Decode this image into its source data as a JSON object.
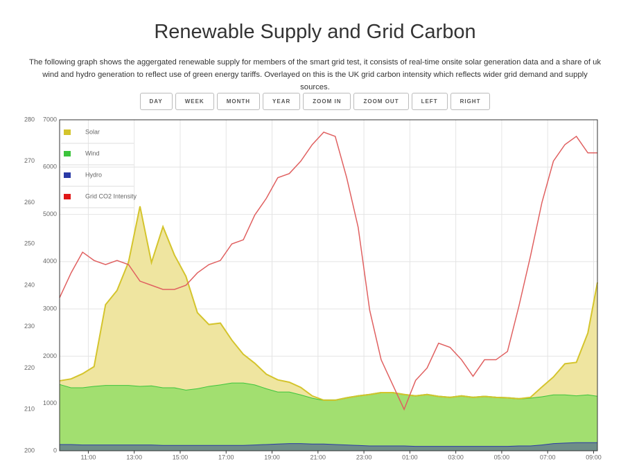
{
  "header": {
    "title": "Renewable Supply and Grid Carbon",
    "description": "The following graph shows the aggergated renewable supply for members of the smart grid test, it consists of real-time onsite solar generation data and a share of uk wind and hydro generation to reflect use of green energy tariffs. Overlayed on this is the UK grid carbon intensity which reflects wider grid demand and supply sources."
  },
  "buttons": [
    "DAY",
    "WEEK",
    "MONTH",
    "YEAR",
    "ZOOM IN",
    "ZOOM OUT",
    "LEFT",
    "RIGHT"
  ],
  "chart_data": {
    "type": "area",
    "stacked": true,
    "grid": true,
    "legend": "top-left",
    "x": [
      "09:45",
      "10:15",
      "10:45",
      "11:15",
      "11:45",
      "12:15",
      "12:45",
      "13:15",
      "13:45",
      "14:15",
      "14:45",
      "15:15",
      "15:45",
      "16:15",
      "16:45",
      "17:15",
      "17:45",
      "18:15",
      "18:45",
      "19:15",
      "19:45",
      "20:15",
      "20:45",
      "21:15",
      "21:45",
      "22:15",
      "22:45",
      "23:15",
      "23:45",
      "00:15",
      "00:45",
      "01:15",
      "01:45",
      "02:15",
      "02:45",
      "03:15",
      "03:45",
      "04:15",
      "04:45",
      "05:15",
      "05:45",
      "06:15",
      "06:45",
      "07:15",
      "07:45",
      "08:15",
      "08:45",
      "09:10"
    ],
    "xlim": [
      "09:45",
      "09:10"
    ],
    "xticks": [
      "11:00",
      "13:00",
      "15:00",
      "17:00",
      "19:00",
      "21:00",
      "23:00",
      "01:00",
      "03:00",
      "05:00",
      "07:00",
      "09:00"
    ],
    "ylim": [
      0,
      7000
    ],
    "yticks": [
      0,
      1000,
      2000,
      3000,
      4000,
      5000,
      6000,
      7000
    ],
    "y2lim": [
      200,
      280
    ],
    "y2ticks": [
      200,
      210,
      220,
      230,
      240,
      250,
      260,
      270,
      280
    ],
    "series": [
      {
        "name": "Solar",
        "color": "#d4c42c",
        "fill": "#efe5a0",
        "values": [
          70,
          180,
          290,
          410,
          1700,
          2000,
          2600,
          3800,
          2600,
          3400,
          2800,
          2400,
          1600,
          1300,
          1300,
          900,
          600,
          450,
          300,
          250,
          200,
          150,
          40,
          0,
          0,
          0,
          0,
          0,
          0,
          0,
          0,
          0,
          0,
          0,
          0,
          0,
          0,
          0,
          0,
          0,
          0,
          10,
          200,
          370,
          650,
          700,
          1300,
          2400
        ]
      },
      {
        "name": "Wind",
        "color": "#3cc43c",
        "fill": "#a2df70",
        "values": [
          1270,
          1200,
          1210,
          1240,
          1260,
          1260,
          1260,
          1240,
          1250,
          1220,
          1220,
          1170,
          1200,
          1250,
          1280,
          1320,
          1320,
          1270,
          1180,
          1100,
          1090,
          1030,
          970,
          920,
          930,
          990,
          1040,
          1080,
          1120,
          1120,
          1080,
          1060,
          1090,
          1050,
          1030,
          1060,
          1030,
          1050,
          1030,
          1020,
          990,
          1010,
          1020,
          1030,
          1020,
          990,
          1010,
          980
        ]
      },
      {
        "name": "Hydro",
        "color": "#2a3aa6",
        "fill": "#6e8d88",
        "values": [
          140,
          140,
          130,
          130,
          130,
          130,
          130,
          130,
          130,
          120,
          120,
          120,
          120,
          120,
          120,
          120,
          120,
          130,
          140,
          150,
          160,
          160,
          150,
          150,
          140,
          130,
          120,
          110,
          110,
          110,
          110,
          100,
          100,
          100,
          100,
          100,
          100,
          100,
          100,
          100,
          110,
          110,
          130,
          160,
          170,
          180,
          180,
          180
        ]
      },
      {
        "name": "Grid CO2 Intensity",
        "color": "#e01818",
        "line": "#e06060",
        "axis": "y2",
        "values": [
          237,
          243,
          248,
          246,
          245,
          246,
          245,
          241,
          240,
          239,
          239,
          240,
          243,
          245,
          246,
          250,
          251,
          257,
          261,
          266,
          267,
          270,
          274,
          277,
          276,
          266,
          254,
          234,
          222,
          216,
          210,
          217,
          220,
          226,
          225,
          222,
          218,
          222,
          222,
          224,
          235,
          247,
          260,
          270,
          274,
          276,
          272,
          272
        ]
      }
    ]
  }
}
